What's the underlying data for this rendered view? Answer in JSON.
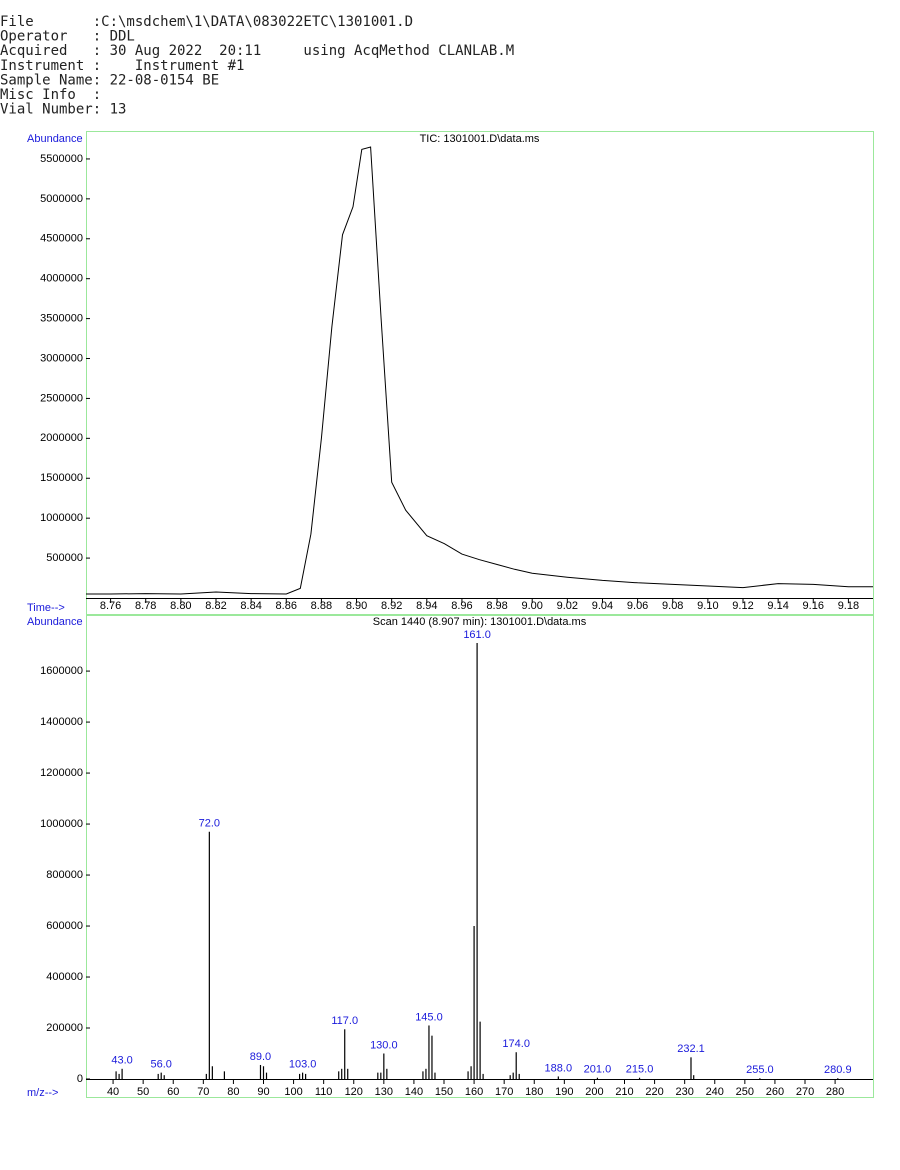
{
  "header": {
    "lines": [
      "File       :C:\\msdchem\\1\\DATA\\083022ETC\\1301001.D",
      "Operator   : DDL",
      "Acquired   : 30 Aug 2022  20:11     using AcqMethod CLANLAB.M",
      "Instrument :    Instrument #1",
      "Sample Name: 22-08-0154 BE",
      "Misc Info  :",
      "Vial Number: 13"
    ]
  },
  "chart_data": [
    {
      "type": "line",
      "title": "TIC: 1301001.D\\data.ms",
      "y_label": "Abundance",
      "x_label": "Time-->",
      "x": [
        8.746,
        8.76,
        8.78,
        8.8,
        8.82,
        8.84,
        8.86,
        8.868,
        8.874,
        8.88,
        8.886,
        8.892,
        8.898,
        8.903,
        8.908,
        8.914,
        8.92,
        8.928,
        8.94,
        8.95,
        8.96,
        8.97,
        8.98,
        8.99,
        9.0,
        9.02,
        9.04,
        9.06,
        9.08,
        9.1,
        9.12,
        9.14,
        9.16,
        9.18,
        9.194
      ],
      "series": [
        {
          "color": "#000000",
          "values": [
            50000,
            50000,
            55000,
            50000,
            75000,
            55000,
            50000,
            120000,
            800000,
            2000000,
            3400000,
            4550000,
            4900000,
            5620000,
            5650000,
            3500000,
            1450000,
            1100000,
            780000,
            680000,
            550000,
            480000,
            420000,
            360000,
            310000,
            260000,
            220000,
            190000,
            170000,
            150000,
            130000,
            180000,
            170000,
            140000,
            140000
          ]
        }
      ],
      "xlim": [
        8.746,
        9.194
      ],
      "ylim": [
        0,
        5850000
      ],
      "xticks": [
        8.76,
        8.78,
        {
          "value": 8.8,
          "label": "8.80"
        },
        8.82,
        8.84,
        8.86,
        8.88,
        {
          "value": 8.9,
          "label": "8.90"
        },
        8.92,
        8.94,
        8.96,
        8.98,
        {
          "value": 9.0,
          "label": "9.00"
        },
        9.02,
        9.04,
        9.06,
        9.08,
        {
          "value": 9.1,
          "label": "9.10"
        },
        9.12,
        9.14,
        9.16,
        9.18
      ],
      "yticks": [
        500000,
        1000000,
        1500000,
        2000000,
        2500000,
        3000000,
        3500000,
        4000000,
        4500000,
        5000000,
        5500000
      ]
    },
    {
      "type": "bar",
      "title": "Scan 1440 (8.907 min): 1301001.D\\data.ms",
      "y_label": "Abundance",
      "x_label": "m/z-->",
      "color": "#000000",
      "x": [
        41,
        42,
        43.0,
        55,
        56.0,
        57,
        71,
        72.0,
        73,
        77,
        89.0,
        90,
        91,
        102,
        103.0,
        104,
        115,
        116,
        117.0,
        118,
        128,
        129,
        130.0,
        131,
        143,
        144,
        145.0,
        146,
        147,
        158,
        159,
        160,
        161.0,
        162,
        163,
        172,
        173,
        174.0,
        175,
        188.0,
        201.0,
        215.0,
        232.1,
        233,
        255.0,
        280.9
      ],
      "values": [
        30000,
        20000,
        40000,
        20000,
        25000,
        15000,
        20000,
        970000,
        50000,
        30000,
        55000,
        50000,
        25000,
        20000,
        25000,
        20000,
        30000,
        40000,
        195000,
        40000,
        25000,
        25000,
        100000,
        40000,
        30000,
        40000,
        210000,
        170000,
        25000,
        30000,
        50000,
        600000,
        1710000,
        225000,
        20000,
        15000,
        25000,
        105000,
        20000,
        10000,
        5000,
        5000,
        85000,
        15000,
        3000,
        3000
      ],
      "x_labels": [
        null,
        null,
        "43.0",
        null,
        "56.0",
        null,
        null,
        "72.0",
        null,
        null,
        "89.0",
        null,
        null,
        null,
        "103.0",
        null,
        null,
        null,
        "117.0",
        null,
        null,
        null,
        "130.0",
        null,
        null,
        null,
        "145.0",
        null,
        null,
        null,
        null,
        null,
        "161.0",
        null,
        null,
        null,
        null,
        "174.0",
        null,
        "188.0",
        "201.0",
        "215.0",
        "232.1",
        null,
        "255.0",
        "280.9"
      ],
      "xlim": [
        31,
        292.6
      ],
      "ylim": [
        0,
        1820000
      ],
      "xticks": [
        40,
        50,
        60,
        70,
        80,
        90,
        100,
        110,
        120,
        130,
        140,
        150,
        160,
        170,
        180,
        190,
        200,
        210,
        220,
        230,
        240,
        250,
        260,
        270,
        280
      ],
      "yticks": [
        0,
        200000,
        400000,
        600000,
        800000,
        1000000,
        1200000,
        1400000,
        1600000
      ]
    }
  ]
}
